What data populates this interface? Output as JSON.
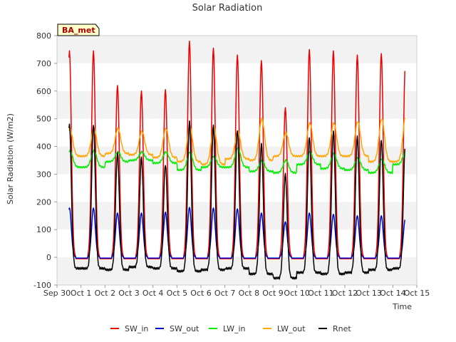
{
  "chart_data": {
    "type": "line",
    "title": "Solar Radiation",
    "xlabel": "Time",
    "ylabel": "Solar Radiation (W/m2)",
    "badge": "BA_met",
    "ylim": [
      -100,
      800
    ],
    "yticks": [
      -100,
      0,
      100,
      200,
      300,
      400,
      500,
      600,
      700,
      800
    ],
    "xlim": [
      0,
      15
    ],
    "xtick_labels": [
      "Sep 30",
      "Oct 1",
      "Oct 2",
      "Oct 3",
      "Oct 4",
      "Oct 5",
      "Oct 6",
      "Oct 7",
      "Oct 8",
      "Oct 9",
      "Oct 10",
      "Oct 11",
      "Oct 12",
      "Oct 13",
      "Oct 14",
      "Oct 15"
    ],
    "grid": "horizontal alternating bands",
    "legend_position": "bottom",
    "data_days": [
      0.5,
      14.5
    ],
    "series": [
      {
        "name": "SW_in",
        "color": "#ee0000",
        "daily_peak": [
          745,
          620,
          600,
          605,
          780,
          755,
          730,
          710,
          540,
          750,
          745,
          730,
          735,
          695
        ],
        "night": -5
      },
      {
        "name": "SW_out",
        "color": "#0000cc",
        "daily_peak": [
          178,
          160,
          160,
          163,
          180,
          178,
          175,
          160,
          128,
          160,
          155,
          150,
          150,
          140
        ],
        "night": -3
      },
      {
        "name": "LW_in",
        "color": "#00ee00",
        "daily_peak": [
          385,
          380,
          380,
          380,
          380,
          365,
          395,
          350,
          350,
          380,
          375,
          360,
          355,
          385
        ],
        "daily_base": [
          325,
          345,
          350,
          340,
          315,
          325,
          325,
          310,
          305,
          335,
          320,
          315,
          305,
          335
        ]
      },
      {
        "name": "LW_out",
        "color": "#ffa500",
        "daily_peak": [
          465,
          465,
          455,
          465,
          470,
          470,
          455,
          500,
          450,
          485,
          485,
          490,
          500,
          515
        ],
        "daily_base": [
          365,
          375,
          370,
          360,
          345,
          335,
          355,
          350,
          365,
          365,
          365,
          365,
          345,
          345
        ]
      },
      {
        "name": "Rnet",
        "color": "#000000",
        "daily_peak": [
          480,
          375,
          360,
          335,
          490,
          475,
          460,
          410,
          300,
          435,
          455,
          435,
          425,
          410
        ],
        "night": [
          -40,
          -45,
          -35,
          -40,
          -50,
          -45,
          -40,
          -60,
          -75,
          -55,
          -60,
          -55,
          -45,
          -40
        ]
      }
    ]
  }
}
